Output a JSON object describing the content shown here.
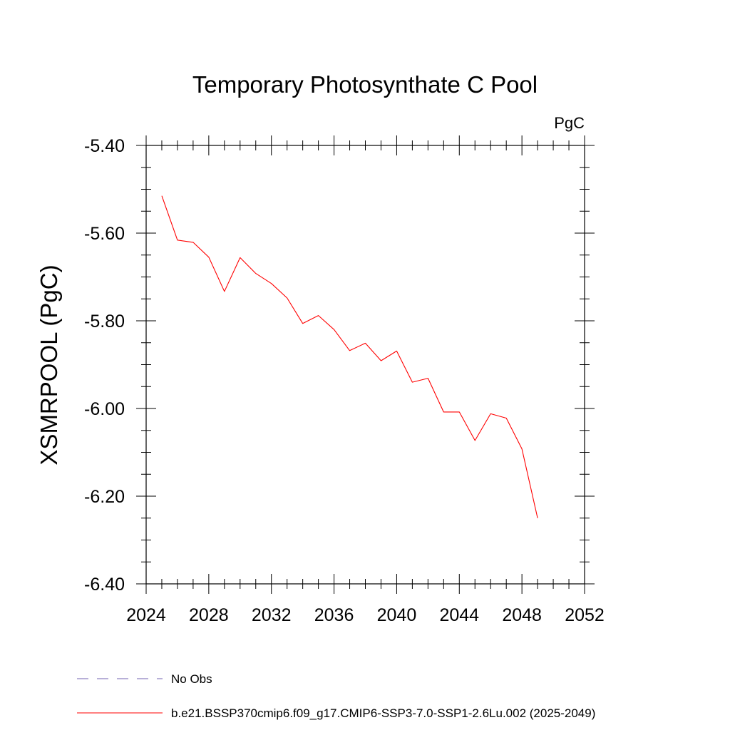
{
  "chart_data": {
    "type": "line",
    "title": "Temporary Photosynthate C Pool",
    "units": "PgC",
    "ylabel": "XSMRPOOL  (PgC)",
    "xlabel": "",
    "xlim": [
      2024,
      2052
    ],
    "ylim": [
      -6.4,
      -5.4
    ],
    "xticks": [
      2024,
      2028,
      2032,
      2036,
      2040,
      2044,
      2048,
      2052
    ],
    "yticks": [
      "-5.40",
      "-5.60",
      "-5.80",
      "-6.00",
      "-6.20",
      "-6.40"
    ],
    "grid": false,
    "legend_position": "bottom",
    "series": [
      {
        "name": "b.e21.BSSP370cmip6.f09_g17.CMIP6-SSP3-7.0-SSP1-2.6Lu.002 (2025-2049)",
        "color": "#ff0000",
        "style": "solid",
        "x": [
          2025,
          2026,
          2027,
          2028,
          2029,
          2030,
          2031,
          2032,
          2033,
          2034,
          2035,
          2036,
          2037,
          2038,
          2039,
          2040,
          2041,
          2042,
          2043,
          2044,
          2045,
          2046,
          2047,
          2048,
          2049
        ],
        "y": [
          -5.515,
          -5.616,
          -5.621,
          -5.655,
          -5.733,
          -5.656,
          -5.692,
          -5.715,
          -5.748,
          -5.806,
          -5.788,
          -5.82,
          -5.868,
          -5.851,
          -5.891,
          -5.869,
          -5.94,
          -5.931,
          -6.008,
          -6.008,
          -6.073,
          -6.012,
          -6.022,
          -6.092,
          -6.25
        ]
      }
    ],
    "legend": [
      {
        "label": "No Obs",
        "color": "#7060b0",
        "style": "dashed"
      },
      {
        "label": "b.e21.BSSP370cmip6.f09_g17.CMIP6-SSP3-7.0-SSP1-2.6Lu.002 (2025-2049)",
        "color": "#ff0000",
        "style": "solid"
      }
    ]
  }
}
